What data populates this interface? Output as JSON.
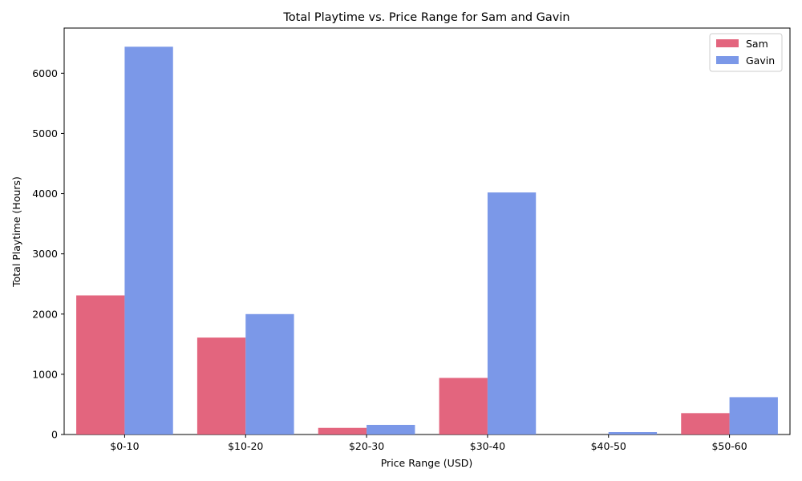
{
  "chart_data": {
    "type": "bar",
    "title": "Total Playtime vs. Price Range for Sam and Gavin",
    "xlabel": "Price Range (USD)",
    "ylabel": "Total Playtime (Hours)",
    "categories": [
      "$0-10",
      "$10-20",
      "$20-30",
      "$30-40",
      "$40-50",
      "$50-60"
    ],
    "series": [
      {
        "name": "Sam",
        "values": [
          2310,
          1610,
          110,
          940,
          0,
          355
        ],
        "color": "#e05470"
      },
      {
        "name": "Gavin",
        "values": [
          6440,
          2000,
          160,
          4020,
          40,
          620
        ],
        "color": "#6d8de6"
      }
    ],
    "ylim": [
      0,
      6750
    ],
    "yticks": [
      0,
      1000,
      2000,
      3000,
      4000,
      5000,
      6000
    ],
    "grid": false,
    "legend_position": "top-right"
  }
}
